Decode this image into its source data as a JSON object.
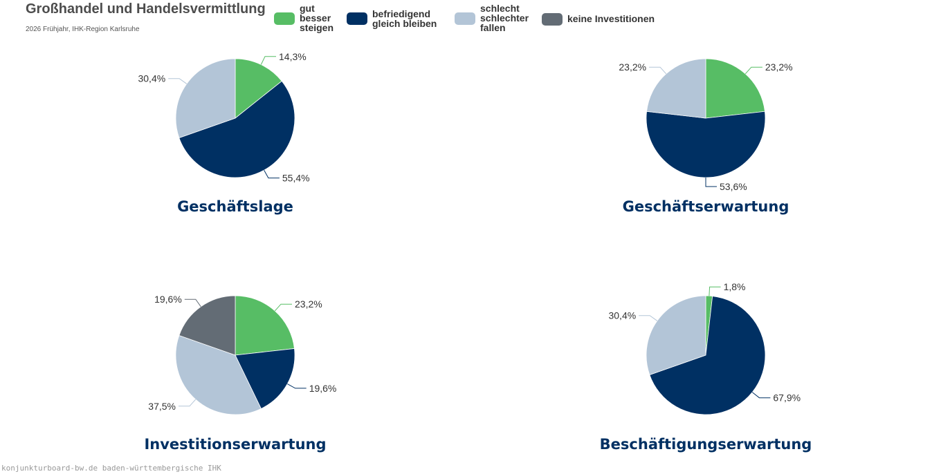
{
  "header": {
    "title": "Großhandel und Handelsvermittlung",
    "subtitle": "2026 Frühjahr, IHK-Region Karlsruhe"
  },
  "legend": [
    {
      "label": "gut\nbesser\nsteigen",
      "color": "#57bd65"
    },
    {
      "label": "befriedigend\ngleich bleiben",
      "color": "#003063"
    },
    {
      "label": "schlecht\nschlechter\nfallen",
      "color": "#b3c5d7"
    },
    {
      "label": "keine Investitionen",
      "color": "#636c75"
    }
  ],
  "chart_data": [
    {
      "type": "pie",
      "title": "Geschäftslage",
      "slices": [
        {
          "category": "gut / besser / steigen",
          "value": 14.3,
          "label": "14,3%",
          "color": "#57bd65"
        },
        {
          "category": "befriedigend / gleich bleiben",
          "value": 55.4,
          "label": "55,4%",
          "color": "#003063"
        },
        {
          "category": "schlecht / schlechter / fallen",
          "value": 30.4,
          "label": "30,4%",
          "color": "#b3c5d7"
        }
      ]
    },
    {
      "type": "pie",
      "title": "Geschäftserwartung",
      "slices": [
        {
          "category": "gut / besser / steigen",
          "value": 23.2,
          "label": "23,2%",
          "color": "#57bd65"
        },
        {
          "category": "befriedigend / gleich bleiben",
          "value": 53.6,
          "label": "53,6%",
          "color": "#003063"
        },
        {
          "category": "schlecht / schlechter / fallen",
          "value": 23.2,
          "label": "23,2%",
          "color": "#b3c5d7"
        }
      ]
    },
    {
      "type": "pie",
      "title": "Investitionserwartung",
      "slices": [
        {
          "category": "gut / besser / steigen",
          "value": 23.2,
          "label": "23,2%",
          "color": "#57bd65"
        },
        {
          "category": "befriedigend / gleich bleiben",
          "value": 19.6,
          "label": "19,6%",
          "color": "#003063"
        },
        {
          "category": "schlecht / schlechter / fallen",
          "value": 37.5,
          "label": "37,5%",
          "color": "#b3c5d7"
        },
        {
          "category": "keine Investitionen",
          "value": 19.6,
          "label": "19,6%",
          "color": "#636c75"
        }
      ]
    },
    {
      "type": "pie",
      "title": "Beschäftigungserwartung",
      "slices": [
        {
          "category": "gut / besser / steigen",
          "value": 1.8,
          "label": "1,8%",
          "color": "#57bd65"
        },
        {
          "category": "befriedigend / gleich bleiben",
          "value": 67.9,
          "label": "67,9%",
          "color": "#003063"
        },
        {
          "category": "schlecht / schlechter / fallen",
          "value": 30.4,
          "label": "30,4%",
          "color": "#b3c5d7"
        }
      ]
    }
  ],
  "footer": {
    "text": "konjunkturboard-bw.de baden-württembergische IHK"
  }
}
